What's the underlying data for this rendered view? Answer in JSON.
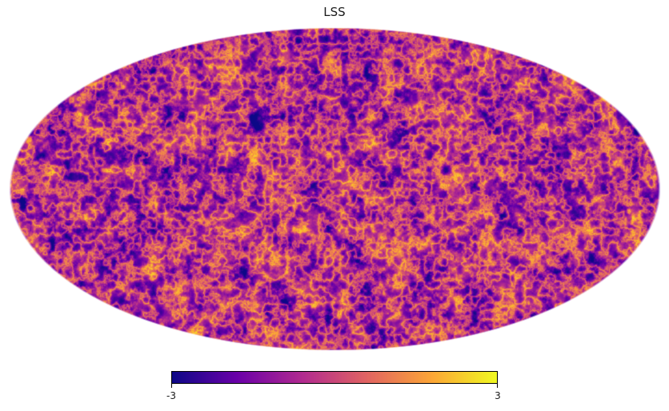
{
  "title": "LSS",
  "projection": "mollweide",
  "colormap": {
    "name": "plasma",
    "stops": [
      "#0d0887",
      "#6a00a8",
      "#b12a90",
      "#e16462",
      "#fca636",
      "#f0f921"
    ]
  },
  "colorbar": {
    "min": -3,
    "max": 3,
    "min_label": "-3",
    "max_label": "3"
  }
}
